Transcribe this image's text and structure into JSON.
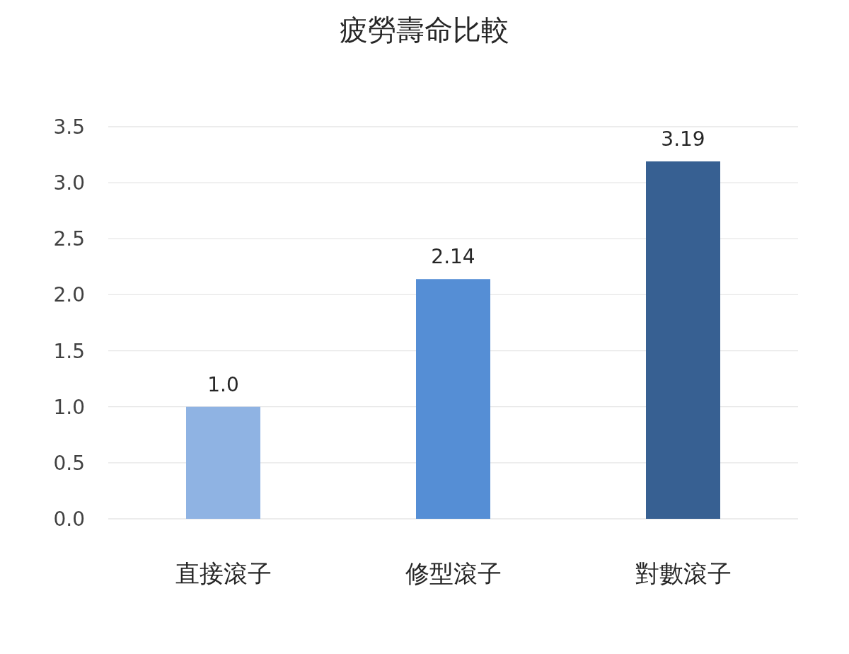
{
  "chart_data": {
    "type": "bar",
    "title": "疲勞壽命比較",
    "categories": [
      "直接滾子",
      "修型滾子",
      "對數滾子"
    ],
    "values": [
      1.0,
      2.14,
      3.19
    ],
    "colors": [
      "#8fb3e3",
      "#558ed5",
      "#376092"
    ],
    "value_labels": [
      "1.0",
      "2.14",
      "3.19"
    ],
    "ylim": [
      0,
      3.5
    ],
    "yticks": [
      {
        "value": 0,
        "label": "0.0"
      },
      {
        "value": 0.5,
        "label": "0.5"
      },
      {
        "value": 1,
        "label": "1.0"
      },
      {
        "value": 1.5,
        "label": "1.5"
      },
      {
        "value": 2,
        "label": "2.0"
      },
      {
        "value": 2.5,
        "label": "2.5"
      },
      {
        "value": 3,
        "label": "3.0"
      },
      {
        "value": 3.5,
        "label": "3.5"
      }
    ],
    "grid": "y"
  }
}
